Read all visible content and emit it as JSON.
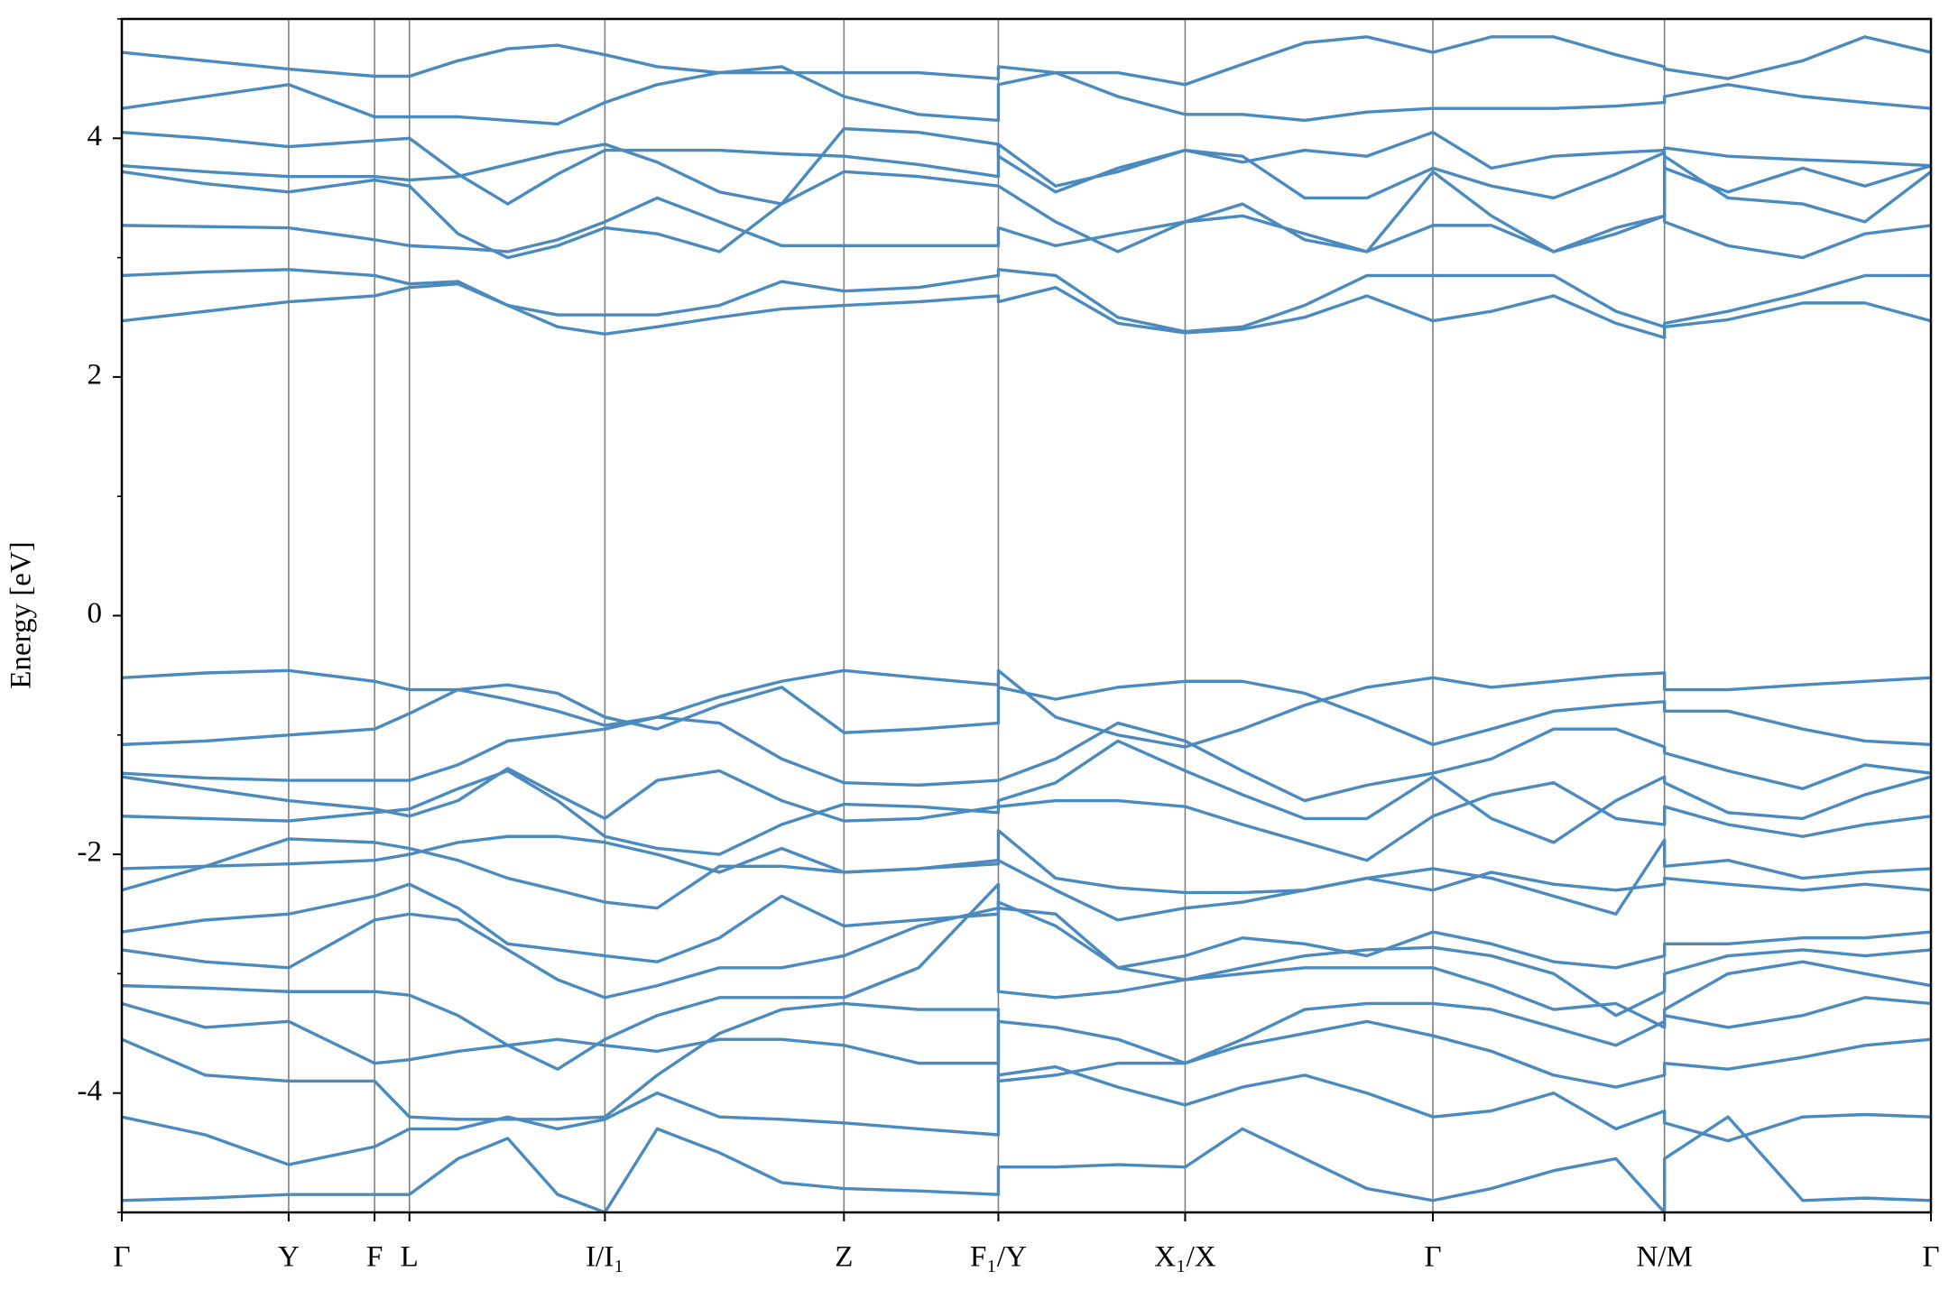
{
  "chart_data": {
    "type": "line",
    "ylabel": "Energy [eV]",
    "color": "#4a8abf",
    "ylim": [
      -5,
      5
    ],
    "yticks": [
      -4,
      -2,
      0,
      2,
      4
    ],
    "yminorticks": [
      -5,
      -3,
      -1,
      1,
      3,
      5
    ],
    "xlim": [
      0,
      14.53
    ],
    "xticks": [
      {
        "value": 0,
        "label": "Γ"
      },
      {
        "value": 1.34,
        "label": "Y"
      },
      {
        "value": 2.03,
        "label": "F"
      },
      {
        "value": 2.31,
        "label": "L"
      },
      {
        "value": 3.88,
        "label": "I/I₁"
      },
      {
        "value": 5.8,
        "label": "Z"
      },
      {
        "value": 7.04,
        "label": "F₁/Y"
      },
      {
        "value": 8.54,
        "label": "X₁/X"
      },
      {
        "value": 10.53,
        "label": "Γ"
      },
      {
        "value": 12.39,
        "label": "N/M"
      },
      {
        "value": 14.53,
        "label": "Γ"
      }
    ],
    "x": [
      0,
      0.67,
      1.34,
      2.03,
      2.31,
      2.7,
      3.1,
      3.5,
      3.88,
      4.3,
      4.8,
      5.3,
      5.8,
      6.4,
      7.04,
      7.04,
      7.5,
      8.0,
      8.54,
      9.0,
      9.5,
      10.0,
      10.53,
      11.0,
      11.5,
      12.0,
      12.39,
      12.39,
      12.9,
      13.5,
      14.0,
      14.53
    ],
    "series": [
      {
        "values": [
          2.47,
          2.55,
          2.63,
          2.68,
          2.75,
          2.78,
          2.6,
          2.42,
          2.36,
          2.42,
          2.5,
          2.57,
          2.6,
          2.63,
          2.68,
          2.63,
          2.75,
          2.45,
          2.37,
          2.4,
          2.5,
          2.68,
          2.47,
          2.55,
          2.68,
          2.45,
          2.33,
          2.42,
          2.48,
          2.62,
          2.62,
          2.47
        ]
      },
      {
        "values": [
          2.85,
          2.88,
          2.9,
          2.85,
          2.78,
          2.8,
          2.6,
          2.52,
          2.52,
          2.52,
          2.6,
          2.8,
          2.72,
          2.75,
          2.85,
          2.9,
          2.85,
          2.5,
          2.38,
          2.42,
          2.6,
          2.85,
          2.85,
          2.85,
          2.85,
          2.55,
          2.42,
          2.45,
          2.55,
          2.7,
          2.85,
          2.85
        ]
      },
      {
        "values": [
          3.27,
          3.26,
          3.25,
          3.15,
          3.1,
          3.08,
          3.05,
          3.15,
          3.3,
          3.5,
          3.3,
          3.1,
          3.1,
          3.1,
          3.1,
          3.25,
          3.1,
          3.2,
          3.3,
          3.35,
          3.2,
          3.05,
          3.27,
          3.27,
          3.05,
          3.2,
          3.35,
          3.3,
          3.1,
          3.0,
          3.2,
          3.27
        ]
      },
      {
        "values": [
          3.72,
          3.62,
          3.55,
          3.65,
          3.6,
          3.2,
          3.0,
          3.1,
          3.25,
          3.2,
          3.05,
          3.45,
          3.72,
          3.68,
          3.6,
          3.6,
          3.3,
          3.05,
          3.3,
          3.45,
          3.15,
          3.05,
          3.72,
          3.35,
          3.05,
          3.25,
          3.35,
          3.85,
          3.5,
          3.45,
          3.3,
          3.72
        ]
      },
      {
        "values": [
          3.77,
          3.72,
          3.68,
          3.68,
          3.65,
          3.68,
          3.78,
          3.88,
          3.95,
          3.8,
          3.55,
          3.45,
          4.08,
          4.05,
          3.95,
          3.85,
          3.55,
          3.75,
          3.9,
          3.85,
          3.5,
          3.5,
          3.75,
          3.6,
          3.5,
          3.7,
          3.88,
          3.75,
          3.55,
          3.75,
          3.6,
          3.77
        ]
      },
      {
        "values": [
          4.05,
          4.0,
          3.93,
          3.98,
          4.0,
          3.7,
          3.45,
          3.7,
          3.9,
          3.9,
          3.9,
          3.87,
          3.85,
          3.78,
          3.68,
          3.95,
          3.6,
          3.72,
          3.9,
          3.8,
          3.9,
          3.85,
          4.05,
          3.75,
          3.85,
          3.88,
          3.9,
          3.92,
          3.85,
          3.82,
          3.8,
          3.77
        ]
      },
      {
        "values": [
          4.25,
          4.35,
          4.45,
          4.18,
          4.18,
          4.18,
          4.15,
          4.12,
          4.3,
          4.45,
          4.55,
          4.6,
          4.35,
          4.2,
          4.15,
          4.45,
          4.55,
          4.35,
          4.2,
          4.2,
          4.15,
          4.22,
          4.25,
          4.25,
          4.25,
          4.27,
          4.3,
          4.35,
          4.45,
          4.35,
          4.3,
          4.25
        ]
      },
      {
        "values": [
          4.72,
          4.65,
          4.58,
          4.52,
          4.52,
          4.65,
          4.75,
          4.78,
          4.7,
          4.6,
          4.55,
          4.55,
          4.55,
          4.55,
          4.5,
          4.6,
          4.55,
          4.55,
          4.45,
          4.62,
          4.8,
          4.85,
          4.72,
          4.85,
          4.85,
          4.7,
          4.6,
          4.58,
          4.5,
          4.65,
          4.85,
          4.72
        ]
      },
      {
        "values": [
          -0.52,
          -0.48,
          -0.46,
          -0.55,
          -0.62,
          -0.62,
          -0.7,
          -0.8,
          -0.92,
          -0.85,
          -0.68,
          -0.55,
          -0.46,
          -0.52,
          -0.58,
          -0.46,
          -0.85,
          -1.0,
          -1.1,
          -0.95,
          -0.75,
          -0.6,
          -0.52,
          -0.6,
          -0.55,
          -0.5,
          -0.48,
          -0.62,
          -0.62,
          -0.58,
          -0.55,
          -0.52
        ]
      },
      {
        "values": [
          -1.08,
          -1.05,
          -1.0,
          -0.95,
          -0.82,
          -0.62,
          -0.58,
          -0.65,
          -0.85,
          -0.95,
          -0.75,
          -0.6,
          -0.98,
          -0.95,
          -0.9,
          -0.6,
          -0.7,
          -0.6,
          -0.55,
          -0.55,
          -0.65,
          -0.85,
          -1.08,
          -0.95,
          -0.8,
          -0.75,
          -0.72,
          -0.8,
          -0.8,
          -0.95,
          -1.05,
          -1.08
        ]
      },
      {
        "values": [
          -1.32,
          -1.36,
          -1.38,
          -1.38,
          -1.38,
          -1.25,
          -1.05,
          -1.0,
          -0.95,
          -0.85,
          -0.9,
          -1.2,
          -1.4,
          -1.42,
          -1.38,
          -1.38,
          -1.2,
          -0.9,
          -1.05,
          -1.3,
          -1.55,
          -1.42,
          -1.32,
          -1.2,
          -0.95,
          -0.95,
          -1.1,
          -1.15,
          -1.3,
          -1.45,
          -1.25,
          -1.32
        ]
      },
      {
        "values": [
          -1.35,
          -1.45,
          -1.55,
          -1.62,
          -1.68,
          -1.55,
          -1.28,
          -1.5,
          -1.7,
          -1.38,
          -1.3,
          -1.55,
          -1.72,
          -1.7,
          -1.6,
          -1.55,
          -1.4,
          -1.05,
          -1.3,
          -1.5,
          -1.7,
          -1.7,
          -1.35,
          -1.7,
          -1.9,
          -1.55,
          -1.35,
          -1.4,
          -1.65,
          -1.7,
          -1.5,
          -1.35
        ]
      },
      {
        "values": [
          -1.68,
          -1.7,
          -1.72,
          -1.65,
          -1.62,
          -1.45,
          -1.3,
          -1.55,
          -1.85,
          -1.95,
          -2.0,
          -1.75,
          -1.58,
          -1.6,
          -1.65,
          -1.6,
          -1.55,
          -1.55,
          -1.6,
          -1.75,
          -1.9,
          -2.05,
          -1.68,
          -1.5,
          -1.4,
          -1.7,
          -1.75,
          -1.6,
          -1.75,
          -1.85,
          -1.75,
          -1.68
        ]
      },
      {
        "values": [
          -2.12,
          -2.1,
          -2.08,
          -2.05,
          -2.0,
          -1.9,
          -1.85,
          -1.85,
          -1.9,
          -2.0,
          -2.15,
          -1.95,
          -2.15,
          -2.12,
          -2.05,
          -1.8,
          -2.2,
          -2.28,
          -2.32,
          -2.32,
          -2.3,
          -2.2,
          -2.12,
          -2.2,
          -2.35,
          -2.5,
          -1.88,
          -2.1,
          -2.05,
          -2.2,
          -2.15,
          -2.12
        ]
      },
      {
        "values": [
          -2.3,
          -2.1,
          -1.87,
          -1.9,
          -1.95,
          -2.05,
          -2.2,
          -2.3,
          -2.4,
          -2.45,
          -2.1,
          -2.1,
          -2.15,
          -2.12,
          -2.08,
          -2.05,
          -2.3,
          -2.55,
          -2.45,
          -2.4,
          -2.3,
          -2.2,
          -2.3,
          -2.15,
          -2.25,
          -2.3,
          -2.25,
          -2.2,
          -2.25,
          -2.3,
          -2.25,
          -2.3
        ]
      },
      {
        "values": [
          -2.65,
          -2.55,
          -2.5,
          -2.35,
          -2.25,
          -2.45,
          -2.75,
          -2.8,
          -2.85,
          -2.9,
          -2.7,
          -2.35,
          -2.6,
          -2.55,
          -2.5,
          -2.4,
          -2.6,
          -2.95,
          -2.85,
          -2.7,
          -2.75,
          -2.85,
          -2.65,
          -2.75,
          -2.9,
          -2.95,
          -2.85,
          -2.75,
          -2.75,
          -2.7,
          -2.7,
          -2.65
        ]
      },
      {
        "values": [
          -2.8,
          -2.9,
          -2.95,
          -2.55,
          -2.5,
          -2.55,
          -2.8,
          -3.05,
          -3.2,
          -3.1,
          -2.95,
          -2.95,
          -2.85,
          -2.6,
          -2.45,
          -2.45,
          -2.5,
          -2.95,
          -3.05,
          -2.95,
          -2.85,
          -2.8,
          -2.78,
          -2.85,
          -3.0,
          -3.35,
          -3.15,
          -3.0,
          -2.85,
          -2.8,
          -2.85,
          -2.8
        ]
      },
      {
        "values": [
          -3.1,
          -3.12,
          -3.15,
          -3.15,
          -3.18,
          -3.35,
          -3.6,
          -3.8,
          -3.55,
          -3.35,
          -3.2,
          -3.2,
          -3.2,
          -2.95,
          -2.25,
          -3.15,
          -3.2,
          -3.15,
          -3.05,
          -3.0,
          -2.95,
          -2.95,
          -2.95,
          -3.1,
          -3.3,
          -3.25,
          -3.45,
          -3.3,
          -3.0,
          -2.9,
          -3.0,
          -3.1
        ]
      },
      {
        "values": [
          -3.25,
          -3.45,
          -3.4,
          -3.75,
          -3.72,
          -3.65,
          -3.6,
          -3.55,
          -3.6,
          -3.65,
          -3.55,
          -3.55,
          -3.6,
          -3.75,
          -3.75,
          -3.4,
          -3.45,
          -3.55,
          -3.75,
          -3.55,
          -3.3,
          -3.25,
          -3.25,
          -3.3,
          -3.45,
          -3.6,
          -3.4,
          -3.35,
          -3.45,
          -3.35,
          -3.2,
          -3.25
        ]
      },
      {
        "values": [
          -3.55,
          -3.85,
          -3.9,
          -3.9,
          -4.2,
          -4.22,
          -4.22,
          -4.22,
          -4.2,
          -3.85,
          -3.5,
          -3.3,
          -3.25,
          -3.3,
          -3.3,
          -3.9,
          -3.85,
          -3.75,
          -3.75,
          -3.6,
          -3.5,
          -3.4,
          -3.52,
          -3.65,
          -3.85,
          -3.95,
          -3.85,
          -3.75,
          -3.8,
          -3.7,
          -3.6,
          -3.55
        ]
      },
      {
        "values": [
          -4.2,
          -4.35,
          -4.6,
          -4.45,
          -4.3,
          -4.3,
          -4.2,
          -4.3,
          -4.22,
          -4.0,
          -4.2,
          -4.22,
          -4.25,
          -4.3,
          -4.35,
          -3.85,
          -3.78,
          -3.95,
          -4.1,
          -3.95,
          -3.85,
          -4.0,
          -4.2,
          -4.15,
          -4.0,
          -4.3,
          -4.15,
          -4.25,
          -4.4,
          -4.2,
          -4.18,
          -4.2
        ]
      },
      {
        "values": [
          -4.9,
          -4.88,
          -4.85,
          -4.85,
          -4.85,
          -4.55,
          -4.38,
          -4.85,
          -5.0,
          -4.3,
          -4.5,
          -4.75,
          -4.8,
          -4.82,
          -4.85,
          -4.62,
          -4.62,
          -4.6,
          -4.62,
          -4.3,
          -4.55,
          -4.8,
          -4.9,
          -4.8,
          -4.65,
          -4.55,
          -5.0,
          -4.55,
          -4.2,
          -4.9,
          -4.88,
          -4.9
        ]
      }
    ]
  }
}
